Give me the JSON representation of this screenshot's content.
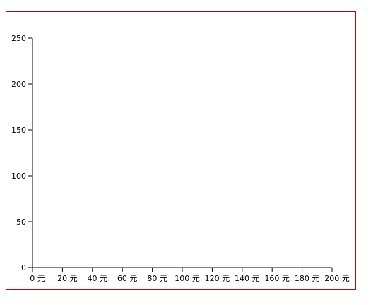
{
  "colors": {
    "frame_border": "#cc0000",
    "axis": "#000000",
    "background": "#ffffff"
  },
  "chart_data": {
    "type": "bar",
    "title": "",
    "xlabel": "",
    "ylabel": "",
    "x_unit": "元",
    "xlim": [
      0,
      200
    ],
    "ylim": [
      0,
      250
    ],
    "x_ticks": [
      "0 元",
      "20 元",
      "40 元",
      "60 元",
      "80 元",
      "100 元",
      "120 元",
      "140 元",
      "160 元",
      "180 元",
      "200 元"
    ],
    "y_ticks": [
      "0",
      "50",
      "100",
      "150",
      "200",
      "250"
    ],
    "series": [],
    "grid": false,
    "legend": "none"
  }
}
